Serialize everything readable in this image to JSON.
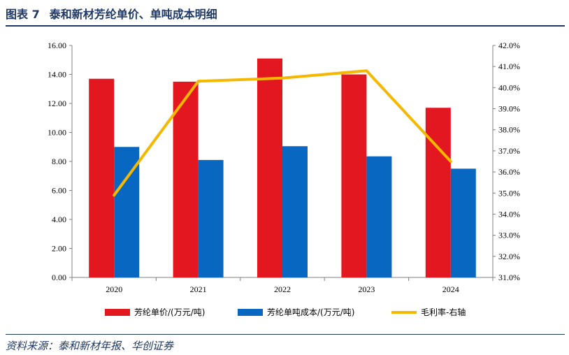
{
  "header": {
    "figure_label": "图表 7",
    "title": "泰和新材芳纶单价、单吨成本明细"
  },
  "source": "资料来源：泰和新材年报、华创证券",
  "colors": {
    "price": "#e3171f",
    "cost": "#0868c1",
    "margin": "#f5b800",
    "rule": "#1f3864"
  },
  "chart_data": {
    "type": "bar",
    "categories": [
      "2020",
      "2021",
      "2022",
      "2023",
      "2024"
    ],
    "series": [
      {
        "name": "芳纶单价/(万元/吨)",
        "type": "bar",
        "axis": "left",
        "color": "#e3171f",
        "values": [
          13.7,
          13.5,
          15.1,
          14.0,
          11.7
        ]
      },
      {
        "name": "芳纶单吨成本/(万元/吨)",
        "type": "bar",
        "axis": "left",
        "color": "#0868c1",
        "values": [
          9.0,
          8.1,
          9.05,
          8.35,
          7.5
        ]
      },
      {
        "name": "毛利率-右轴",
        "type": "line",
        "axis": "right",
        "color": "#f5b800",
        "values": [
          34.9,
          40.3,
          40.45,
          40.8,
          36.5
        ]
      }
    ],
    "y_left": {
      "min": 0,
      "max": 16,
      "step": 2,
      "ticks": [
        "0.00",
        "2.00",
        "4.00",
        "6.00",
        "8.00",
        "10.00",
        "12.00",
        "14.00",
        "16.00"
      ]
    },
    "y_right": {
      "min": 31,
      "max": 42,
      "step": 1,
      "ticks": [
        "31.0%",
        "32.0%",
        "33.0%",
        "34.0%",
        "35.0%",
        "36.0%",
        "37.0%",
        "38.0%",
        "39.0%",
        "40.0%",
        "41.0%",
        "42.0%"
      ]
    },
    "grid": false,
    "legend_position": "bottom"
  }
}
